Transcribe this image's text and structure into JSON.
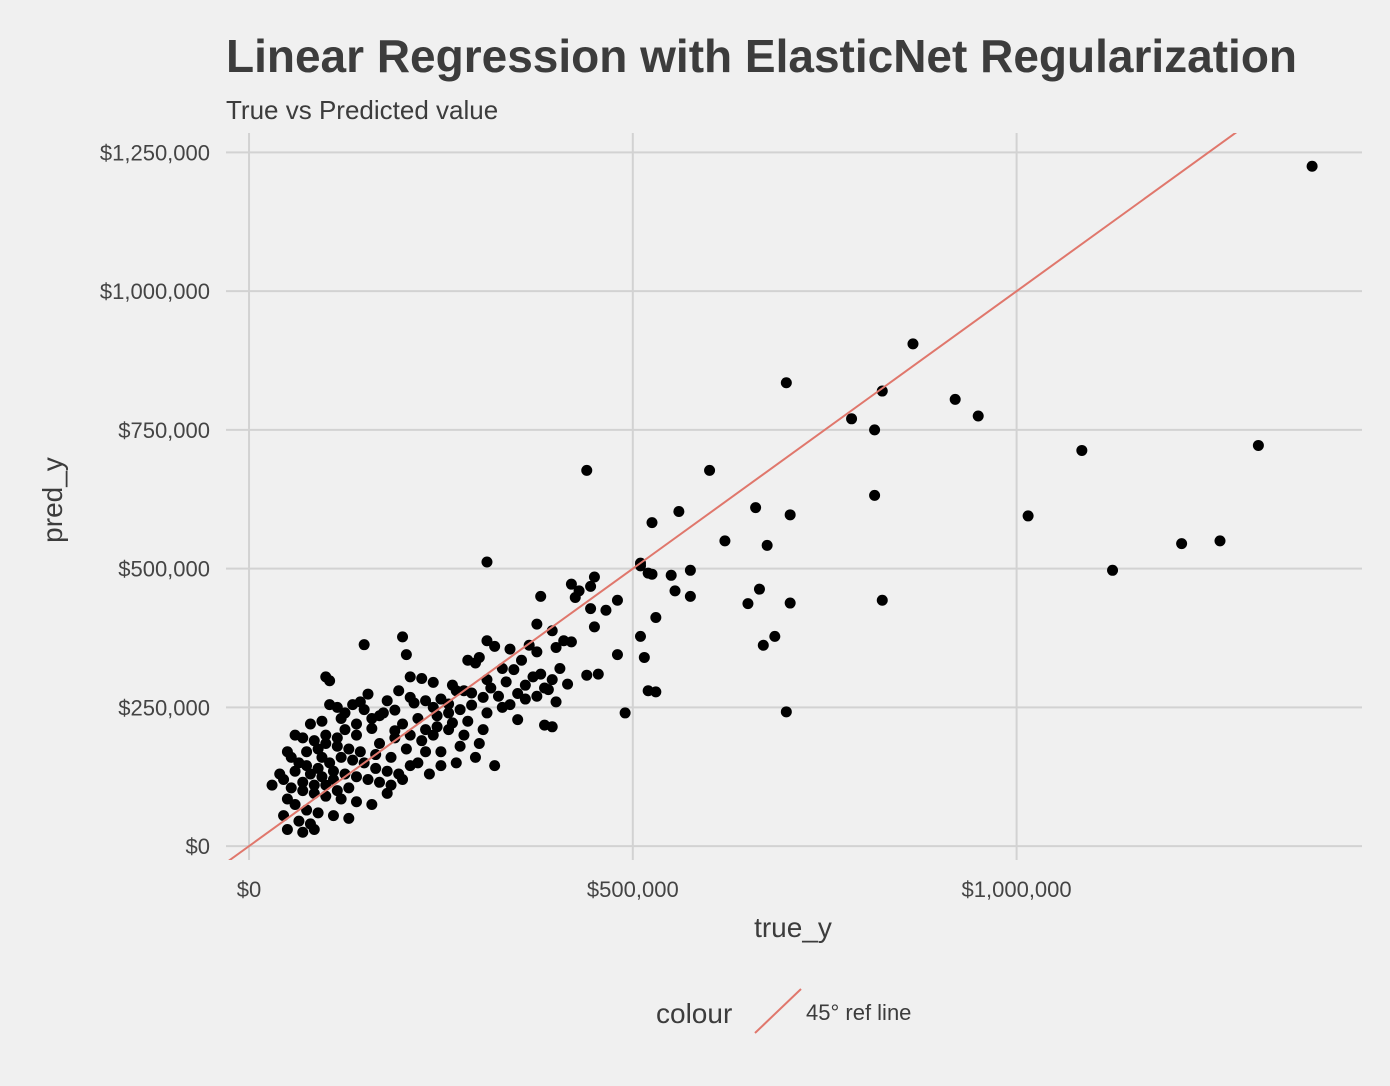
{
  "chart_data": {
    "type": "scatter",
    "title": "Linear Regression with ElasticNet Regularization",
    "subtitle": "True vs Predicted value",
    "xlabel": "true_y",
    "ylabel": "pred_y",
    "xlim": [
      -30000,
      1450000
    ],
    "ylim": [
      -25000,
      1285000
    ],
    "x_ticks": [
      0,
      500000,
      1000000
    ],
    "x_tick_labels": [
      "$0",
      "$500,000",
      "$1,000,000"
    ],
    "y_ticks": [
      0,
      250000,
      500000,
      750000,
      1000000,
      1250000
    ],
    "y_tick_labels": [
      "$0",
      "$250,000",
      "$500,000",
      "$750,000",
      "$1,000,000",
      "$1,250,000"
    ],
    "grid": true,
    "point_color": "#000000",
    "ref_line": {
      "slope": 1,
      "intercept": 0,
      "color": "#e0776c"
    },
    "legend": {
      "title": "colour",
      "placement": "bottom",
      "items": [
        {
          "label": "45° ref line",
          "color": "#e0776c"
        }
      ]
    },
    "points": [
      [
        1385000,
        1225000
      ],
      [
        865000,
        905000
      ],
      [
        700000,
        835000
      ],
      [
        825000,
        820000
      ],
      [
        920000,
        805000
      ],
      [
        950000,
        775000
      ],
      [
        785000,
        770000
      ],
      [
        815000,
        750000
      ],
      [
        1315000,
        722000
      ],
      [
        1085000,
        713000
      ],
      [
        440000,
        677000
      ],
      [
        600000,
        677000
      ],
      [
        815000,
        632000
      ],
      [
        660000,
        610000
      ],
      [
        560000,
        603000
      ],
      [
        705000,
        597000
      ],
      [
        1015000,
        595000
      ],
      [
        525000,
        583000
      ],
      [
        620000,
        550000
      ],
      [
        1265000,
        550000
      ],
      [
        1215000,
        545000
      ],
      [
        675000,
        542000
      ],
      [
        510000,
        510000
      ],
      [
        510000,
        505000
      ],
      [
        310000,
        512000
      ],
      [
        1125000,
        497000
      ],
      [
        575000,
        497000
      ],
      [
        520000,
        492000
      ],
      [
        525000,
        490000
      ],
      [
        550000,
        488000
      ],
      [
        450000,
        485000
      ],
      [
        420000,
        472000
      ],
      [
        445000,
        468000
      ],
      [
        430000,
        460000
      ],
      [
        555000,
        460000
      ],
      [
        425000,
        448000
      ],
      [
        380000,
        450000
      ],
      [
        575000,
        450000
      ],
      [
        825000,
        443000
      ],
      [
        480000,
        443000
      ],
      [
        705000,
        438000
      ],
      [
        650000,
        437000
      ],
      [
        530000,
        412000
      ],
      [
        445000,
        428000
      ],
      [
        465000,
        425000
      ],
      [
        450000,
        395000
      ],
      [
        375000,
        400000
      ],
      [
        395000,
        388000
      ],
      [
        410000,
        370000
      ],
      [
        420000,
        368000
      ],
      [
        510000,
        378000
      ],
      [
        685000,
        378000
      ],
      [
        665000,
        463000
      ],
      [
        670000,
        362000
      ],
      [
        310000,
        370000
      ],
      [
        320000,
        360000
      ],
      [
        340000,
        355000
      ],
      [
        365000,
        362000
      ],
      [
        300000,
        340000
      ],
      [
        375000,
        350000
      ],
      [
        400000,
        358000
      ],
      [
        150000,
        363000
      ],
      [
        200000,
        377000
      ],
      [
        480000,
        345000
      ],
      [
        515000,
        340000
      ],
      [
        285000,
        335000
      ],
      [
        355000,
        335000
      ],
      [
        295000,
        330000
      ],
      [
        330000,
        320000
      ],
      [
        345000,
        318000
      ],
      [
        405000,
        320000
      ],
      [
        455000,
        310000
      ],
      [
        440000,
        308000
      ],
      [
        380000,
        310000
      ],
      [
        385000,
        285000
      ],
      [
        520000,
        280000
      ],
      [
        530000,
        278000
      ],
      [
        310000,
        300000
      ],
      [
        350000,
        275000
      ],
      [
        400000,
        260000
      ],
      [
        270000,
        280000
      ],
      [
        325000,
        270000
      ],
      [
        360000,
        290000
      ],
      [
        100000,
        305000
      ],
      [
        105000,
        298000
      ],
      [
        205000,
        345000
      ],
      [
        210000,
        305000
      ],
      [
        225000,
        302000
      ],
      [
        240000,
        295000
      ],
      [
        265000,
        290000
      ],
      [
        280000,
        280000
      ],
      [
        290000,
        276000
      ],
      [
        305000,
        268000
      ],
      [
        250000,
        265000
      ],
      [
        230000,
        262000
      ],
      [
        215000,
        258000
      ],
      [
        195000,
        280000
      ],
      [
        180000,
        262000
      ],
      [
        155000,
        274000
      ],
      [
        135000,
        255000
      ],
      [
        150000,
        246000
      ],
      [
        170000,
        235000
      ],
      [
        120000,
        230000
      ],
      [
        95000,
        225000
      ],
      [
        80000,
        220000
      ],
      [
        140000,
        220000
      ],
      [
        160000,
        212000
      ],
      [
        190000,
        208000
      ],
      [
        200000,
        220000
      ],
      [
        220000,
        230000
      ],
      [
        245000,
        235000
      ],
      [
        260000,
        240000
      ],
      [
        275000,
        246000
      ],
      [
        290000,
        254000
      ],
      [
        310000,
        240000
      ],
      [
        330000,
        250000
      ],
      [
        350000,
        228000
      ],
      [
        385000,
        218000
      ],
      [
        395000,
        215000
      ],
      [
        490000,
        240000
      ],
      [
        700000,
        242000
      ],
      [
        60000,
        200000
      ],
      [
        70000,
        195000
      ],
      [
        85000,
        190000
      ],
      [
        100000,
        185000
      ],
      [
        115000,
        180000
      ],
      [
        130000,
        175000
      ],
      [
        145000,
        170000
      ],
      [
        165000,
        165000
      ],
      [
        185000,
        160000
      ],
      [
        205000,
        175000
      ],
      [
        225000,
        190000
      ],
      [
        240000,
        200000
      ],
      [
        260000,
        210000
      ],
      [
        280000,
        200000
      ],
      [
        300000,
        185000
      ],
      [
        50000,
        170000
      ],
      [
        55000,
        160000
      ],
      [
        65000,
        150000
      ],
      [
        75000,
        145000
      ],
      [
        90000,
        140000
      ],
      [
        110000,
        135000
      ],
      [
        125000,
        130000
      ],
      [
        140000,
        125000
      ],
      [
        155000,
        120000
      ],
      [
        170000,
        115000
      ],
      [
        185000,
        110000
      ],
      [
        200000,
        120000
      ],
      [
        220000,
        150000
      ],
      [
        250000,
        170000
      ],
      [
        275000,
        180000
      ],
      [
        40000,
        130000
      ],
      [
        45000,
        120000
      ],
      [
        30000,
        110000
      ],
      [
        55000,
        105000
      ],
      [
        70000,
        100000
      ],
      [
        85000,
        95000
      ],
      [
        100000,
        90000
      ],
      [
        120000,
        85000
      ],
      [
        140000,
        80000
      ],
      [
        160000,
        75000
      ],
      [
        180000,
        95000
      ],
      [
        50000,
        85000
      ],
      [
        60000,
        75000
      ],
      [
        75000,
        65000
      ],
      [
        90000,
        60000
      ],
      [
        110000,
        55000
      ],
      [
        130000,
        50000
      ],
      [
        45000,
        55000
      ],
      [
        65000,
        45000
      ],
      [
        80000,
        40000
      ],
      [
        50000,
        30000
      ],
      [
        70000,
        25000
      ],
      [
        85000,
        30000
      ],
      [
        100000,
        110000
      ],
      [
        115000,
        100000
      ],
      [
        130000,
        105000
      ],
      [
        95000,
        160000
      ],
      [
        105000,
        150000
      ],
      [
        120000,
        160000
      ],
      [
        135000,
        155000
      ],
      [
        150000,
        150000
      ],
      [
        165000,
        140000
      ],
      [
        180000,
        135000
      ],
      [
        195000,
        130000
      ],
      [
        210000,
        145000
      ],
      [
        230000,
        170000
      ],
      [
        270000,
        150000
      ],
      [
        295000,
        160000
      ],
      [
        320000,
        145000
      ],
      [
        250000,
        145000
      ],
      [
        235000,
        130000
      ],
      [
        75000,
        170000
      ],
      [
        90000,
        175000
      ],
      [
        80000,
        130000
      ],
      [
        95000,
        125000
      ],
      [
        110000,
        120000
      ],
      [
        60000,
        135000
      ],
      [
        70000,
        115000
      ],
      [
        85000,
        110000
      ],
      [
        100000,
        200000
      ],
      [
        115000,
        195000
      ],
      [
        125000,
        210000
      ],
      [
        140000,
        200000
      ],
      [
        170000,
        185000
      ],
      [
        190000,
        195000
      ],
      [
        210000,
        200000
      ],
      [
        230000,
        210000
      ],
      [
        245000,
        215000
      ],
      [
        265000,
        222000
      ],
      [
        285000,
        225000
      ],
      [
        305000,
        210000
      ],
      [
        340000,
        255000
      ],
      [
        360000,
        265000
      ],
      [
        375000,
        270000
      ],
      [
        390000,
        282000
      ],
      [
        415000,
        292000
      ],
      [
        395000,
        300000
      ],
      [
        370000,
        305000
      ],
      [
        335000,
        296000
      ],
      [
        315000,
        285000
      ],
      [
        260000,
        256000
      ],
      [
        240000,
        250000
      ],
      [
        210000,
        268000
      ],
      [
        190000,
        245000
      ],
      [
        175000,
        240000
      ],
      [
        160000,
        230000
      ],
      [
        145000,
        260000
      ],
      [
        125000,
        240000
      ],
      [
        115000,
        250000
      ],
      [
        105000,
        255000
      ]
    ]
  }
}
